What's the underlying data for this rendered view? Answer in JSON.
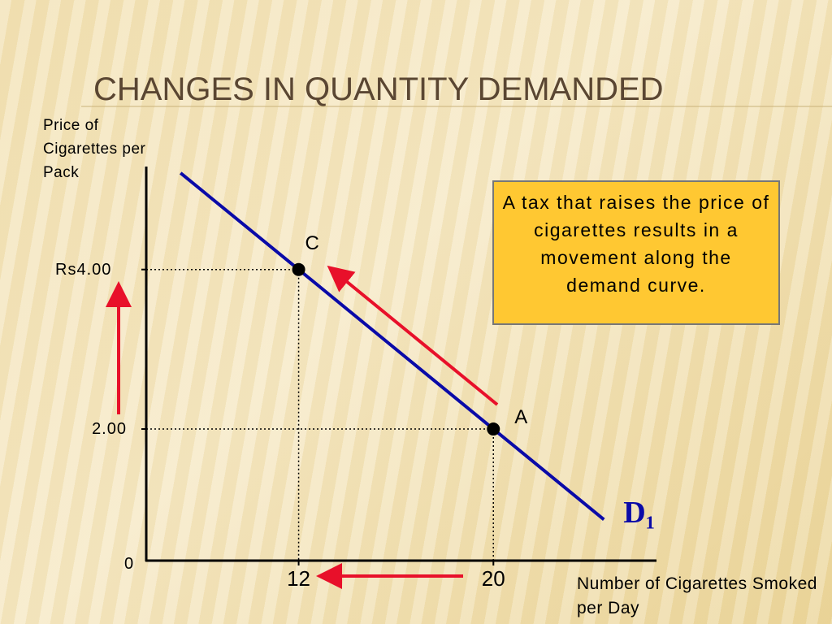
{
  "chart_data": {
    "type": "line",
    "title": "CHANGES IN QUANTITY DEMANDED",
    "y_label": "Price of Cigarettes per Pack",
    "x_label": "Number of Cigarettes Smoked per Day",
    "origin_label": "0",
    "annotation": "A tax that raises the price of cigarettes results in a movement along the demand curve.",
    "xlim": [
      5.74,
      26.7
    ],
    "ylim": [
      0.35,
      5.24
    ],
    "xticks": [
      12,
      20
    ],
    "yticks": [
      {
        "value": 4,
        "label": "Rs4.00"
      },
      {
        "value": 2,
        "label": "2.00"
      }
    ],
    "series": [
      {
        "name": "D₁",
        "color": "#0a0aa8",
        "x": [
          7.15,
          12,
          20,
          24.54
        ],
        "values": [
          5.21,
          4,
          2,
          0.865
        ]
      }
    ],
    "points": [
      {
        "label": "C",
        "x": 12,
        "y": 4
      },
      {
        "label": "A",
        "x": 20,
        "y": 2
      }
    ]
  }
}
